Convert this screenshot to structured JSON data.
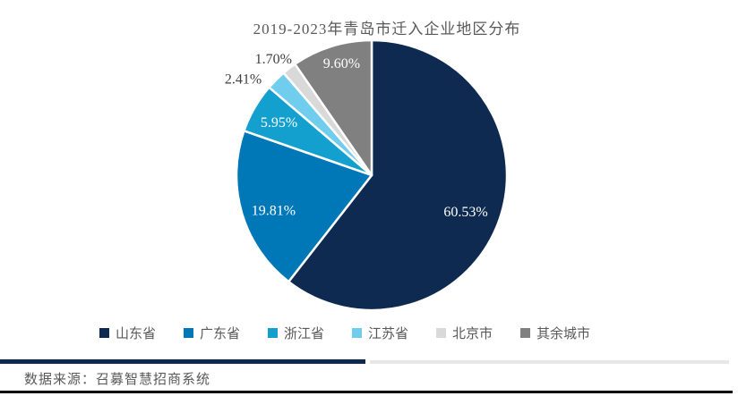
{
  "figure": {
    "title": "2019-2023年青岛市迁入企业地区分布",
    "source_note": "数据来源：召募智慧招商系统"
  },
  "chart_data": {
    "type": "pie",
    "title": "2019-2023年青岛市迁入企业地区分布",
    "categories": [
      "山东省",
      "广东省",
      "浙江省",
      "江苏省",
      "北京市",
      "其余城市"
    ],
    "values": [
      60.53,
      19.81,
      5.95,
      2.41,
      1.7,
      9.6
    ],
    "labels": [
      "60.53%",
      "19.81%",
      "5.95%",
      "2.41%",
      "1.70%",
      "9.60%"
    ],
    "colors": [
      "#0e2a50",
      "#0077b6",
      "#14a0ce",
      "#70cdee",
      "#d9d9d9",
      "#808080"
    ],
    "start_angle_deg": 0,
    "direction": "clockwise",
    "legend_position": "bottom",
    "label_placement": [
      "inside",
      "inside",
      "inside",
      "outside",
      "outside",
      "inside"
    ],
    "inside_label_color": "#ffffff",
    "outside_label_color": "#404040",
    "slice_border_color": "#ffffff"
  },
  "styles": {
    "accent_navy": "#0e2a50",
    "divider_gray": "#e7e7e7",
    "text_gray": "#595959",
    "bottom_line_color": "#000000"
  }
}
